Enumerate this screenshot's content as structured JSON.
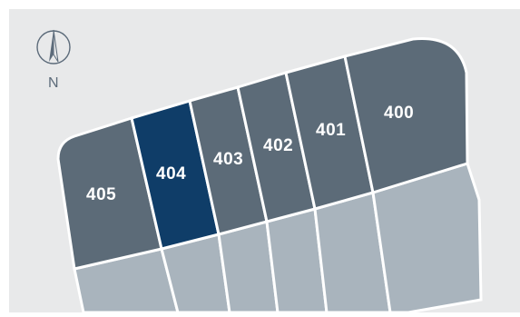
{
  "map": {
    "compass_label": "N",
    "colors": {
      "background": "#e8e9ea",
      "lot": "#5c6b78",
      "lot_selected": "#0f3d68",
      "lot_outline": "#ffffff",
      "lot_lower": "#a9b4bd",
      "compass": "#5c6b7a"
    },
    "lots": [
      {
        "id": "405",
        "label": "405",
        "selected": false
      },
      {
        "id": "404",
        "label": "404",
        "selected": true
      },
      {
        "id": "403",
        "label": "403",
        "selected": false
      },
      {
        "id": "402",
        "label": "402",
        "selected": false
      },
      {
        "id": "401",
        "label": "401",
        "selected": false
      },
      {
        "id": "400",
        "label": "400",
        "selected": false
      }
    ]
  }
}
